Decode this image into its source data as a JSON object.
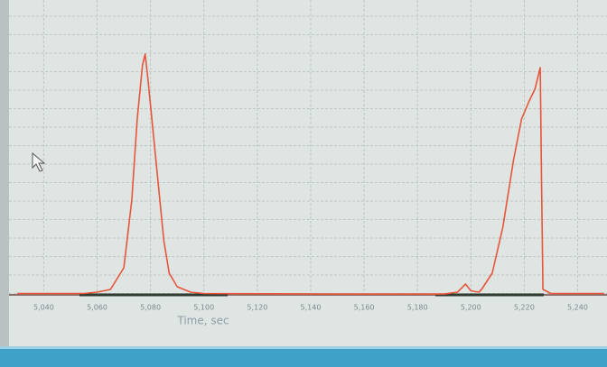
{
  "chart_data": {
    "type": "line",
    "x_label": "Time, sec",
    "x": [
      5030,
      5055,
      5060,
      5065,
      5070,
      5073,
      5075,
      5077,
      5078,
      5079,
      5081,
      5083,
      5085,
      5087,
      5090,
      5095,
      5100,
      5150,
      5190,
      5195,
      5198,
      5200,
      5203,
      5204,
      5208,
      5212,
      5216,
      5219,
      5222,
      5224,
      5226,
      5226.5,
      5227,
      5230,
      5250
    ],
    "values": [
      0.5,
      0.5,
      1,
      2,
      10,
      35,
      65,
      85,
      89,
      80,
      60,
      40,
      20,
      8,
      3,
      1,
      0.5,
      0.3,
      0.3,
      1,
      4,
      1.5,
      1,
      2,
      8,
      25,
      50,
      65,
      72,
      76,
      84,
      40,
      2,
      0.5,
      0.5
    ],
    "color": "#e8553a",
    "xlim": [
      5027,
      5251
    ],
    "ylim": [
      0,
      100
    ],
    "xticks": [
      {
        "value": 5040,
        "label": "5,040"
      },
      {
        "value": 5060,
        "label": "5,060"
      },
      {
        "value": 5080,
        "label": "5,080"
      },
      {
        "value": 5100,
        "label": "5,100"
      },
      {
        "value": 5120,
        "label": "5,120"
      },
      {
        "value": 5140,
        "label": "5,140"
      },
      {
        "value": 5160,
        "label": "5,160"
      },
      {
        "value": 5180,
        "label": "5,180"
      },
      {
        "value": 5200,
        "label": "5,200"
      },
      {
        "value": 5220,
        "label": "5,220"
      },
      {
        "value": 5240,
        "label": "5,240"
      }
    ],
    "grid": true
  }
}
